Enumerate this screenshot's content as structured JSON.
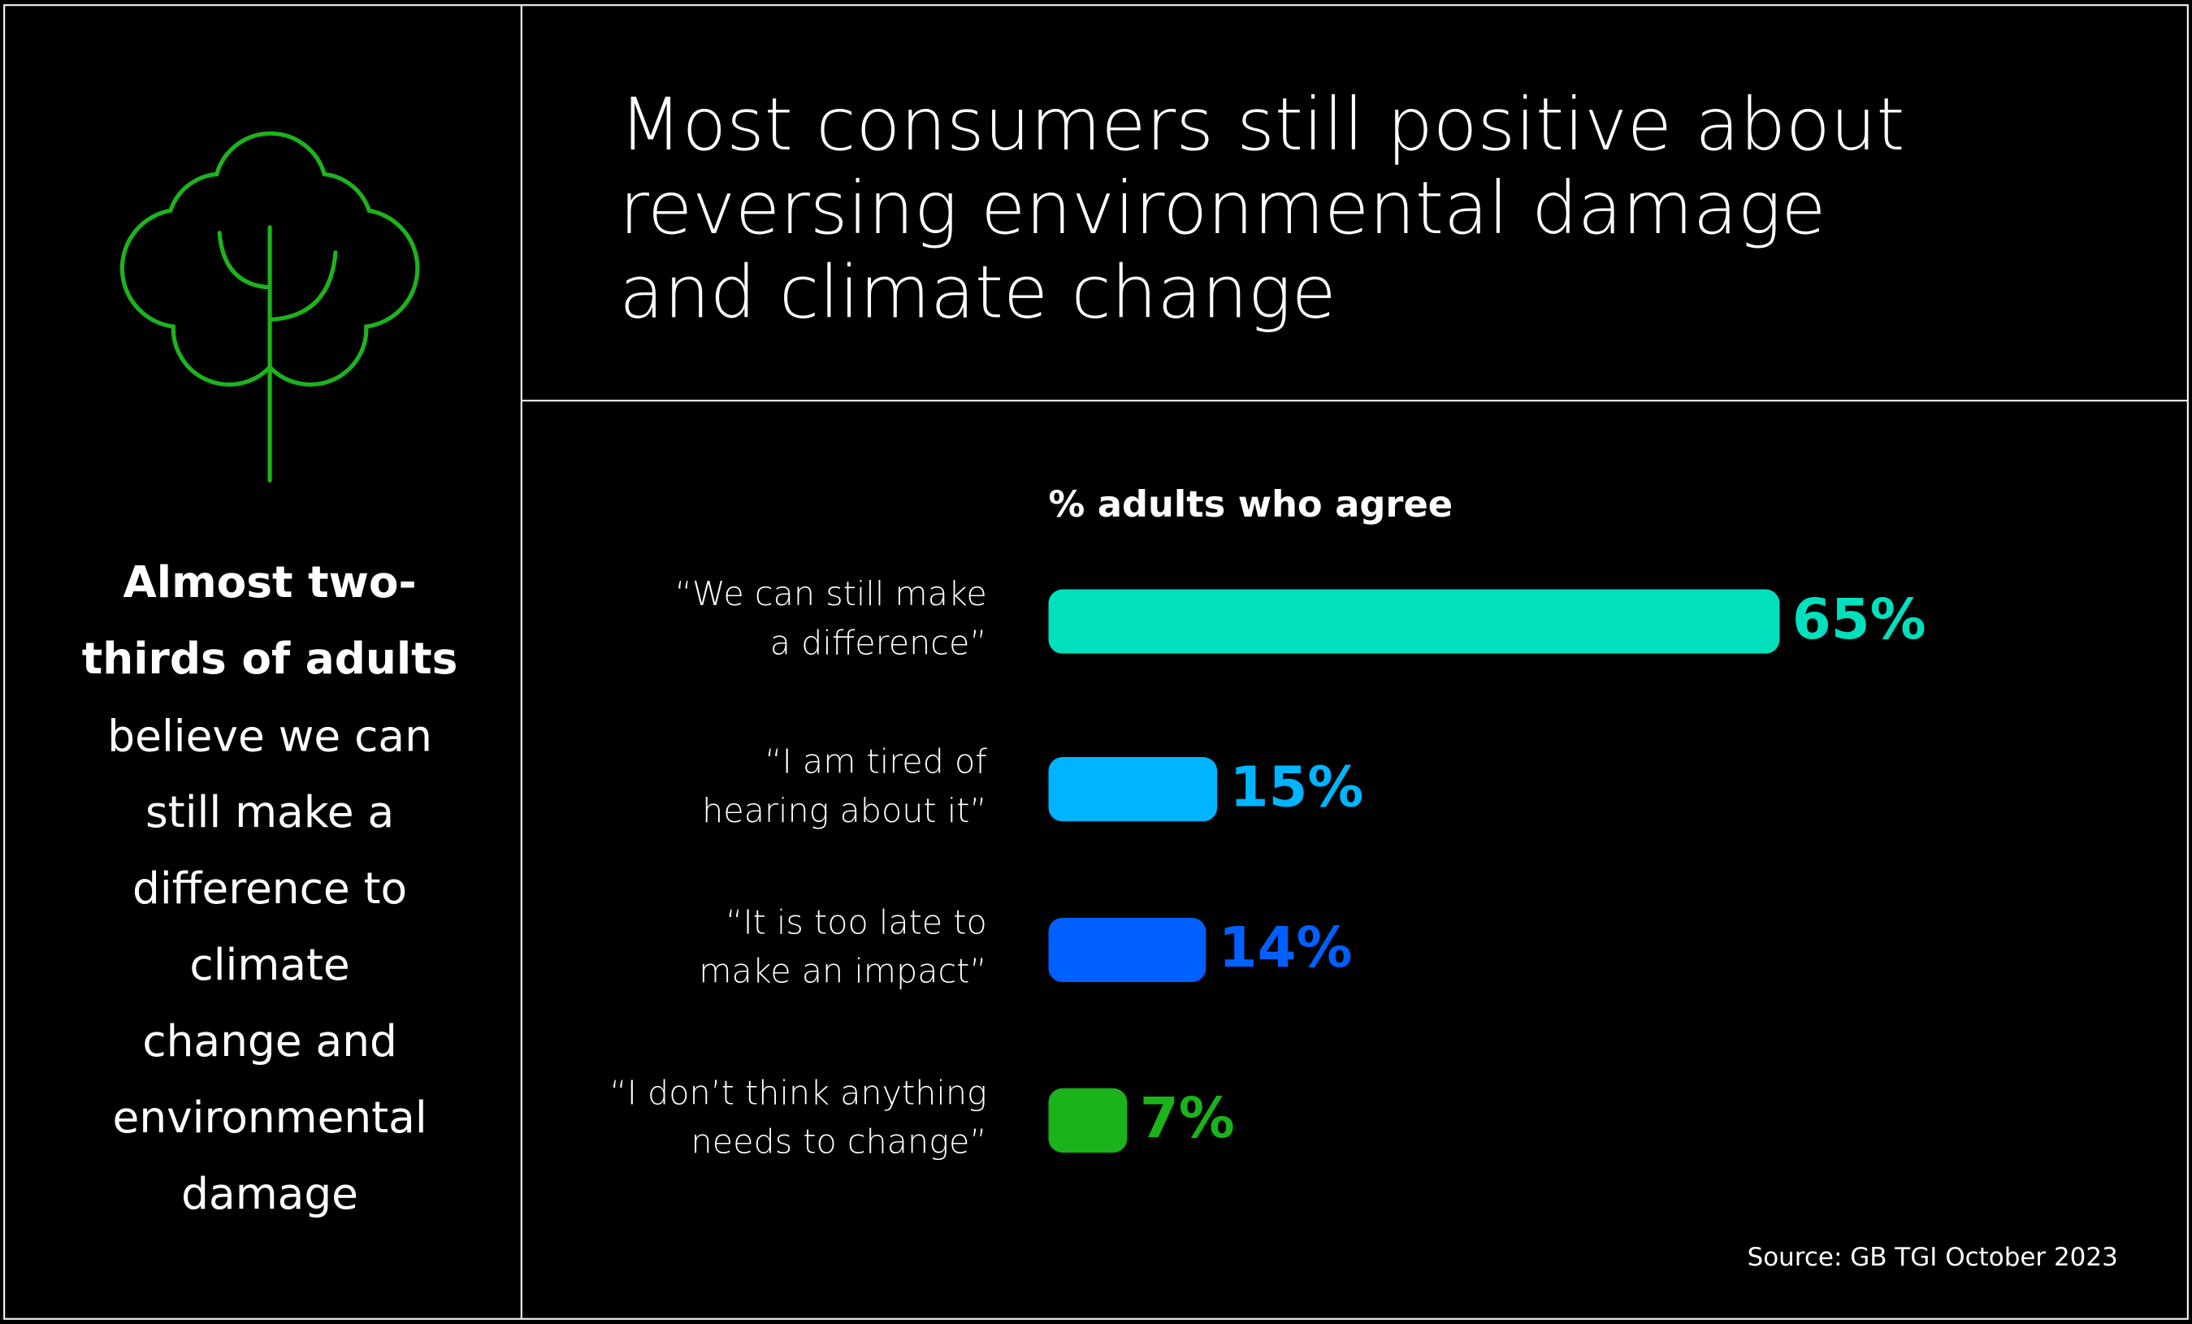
{
  "title_lines": [
    "Most consumers still positive about",
    "reversing environmental damage",
    "and climate change"
  ],
  "sidebar": {
    "bold_lines": [
      "Almost two-",
      "thirds of adults"
    ],
    "lines": [
      "believe we can",
      "still make a",
      "difference to",
      "climate",
      "change and",
      "environmental",
      "damage"
    ]
  },
  "chart_data": {
    "type": "bar",
    "orientation": "horizontal",
    "subtitle": "% adults who agree",
    "categories": [
      [
        "“We can still make",
        "a difference”"
      ],
      [
        "“I am tired of",
        "hearing about it”"
      ],
      [
        "“It is too late to",
        "make an impact”"
      ],
      [
        "“I don’t think anything",
        "needs to change”"
      ]
    ],
    "values": [
      65,
      15,
      14,
      7
    ],
    "value_labels": [
      "65%",
      "15%",
      "14%",
      "7%"
    ],
    "colors": [
      "#00e0bd",
      "#00b4ff",
      "#0060ff",
      "#1ab31a"
    ]
  },
  "source": "Source: GB TGI October 2023"
}
